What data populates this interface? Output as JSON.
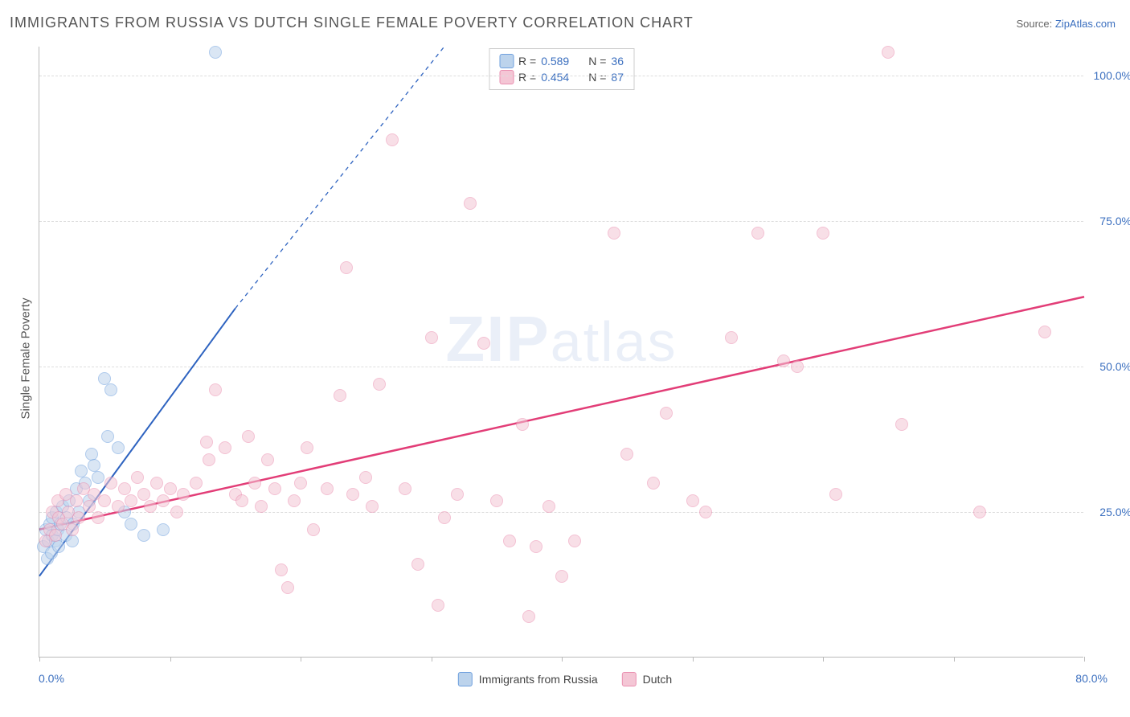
{
  "title": "IMMIGRANTS FROM RUSSIA VS DUTCH SINGLE FEMALE POVERTY CORRELATION CHART",
  "source_label": "Source: ",
  "source_name": "ZipAtlas.com",
  "ylabel": "Single Female Poverty",
  "watermark": "ZIPatlas",
  "chart": {
    "type": "scatter",
    "xlim": [
      0,
      80
    ],
    "ylim": [
      0,
      105
    ],
    "xticks": [
      0,
      10,
      20,
      30,
      40,
      50,
      60,
      70,
      80
    ],
    "xtick_labels": {
      "min": "0.0%",
      "max": "80.0%"
    },
    "yticks": [
      25,
      50,
      75,
      100
    ],
    "ytick_labels": [
      "25.0%",
      "50.0%",
      "75.0%",
      "100.0%"
    ],
    "grid_color": "#dddddd",
    "axis_color": "#bbbbbb",
    "tick_label_color": "#3b6fbf",
    "background_color": "#ffffff",
    "marker_radius": 8,
    "marker_stroke_width": 1.5,
    "series": [
      {
        "name": "Immigrants from Russia",
        "fill": "#bcd3ec",
        "stroke": "#6fa0de",
        "fill_opacity": 0.55,
        "r": 0.589,
        "n": 36,
        "trend": {
          "x1": 0,
          "y1": 14,
          "x2": 15,
          "y2": 60,
          "dash_to_x": 31,
          "dash_to_y": 105,
          "color": "#2e63c0",
          "width": 2
        },
        "points": [
          [
            0.3,
            19
          ],
          [
            0.5,
            22
          ],
          [
            0.6,
            17
          ],
          [
            0.7,
            20
          ],
          [
            0.8,
            23
          ],
          [
            0.9,
            18
          ],
          [
            1.0,
            21
          ],
          [
            1.0,
            24
          ],
          [
            1.2,
            20
          ],
          [
            1.3,
            25
          ],
          [
            1.4,
            22
          ],
          [
            1.5,
            19
          ],
          [
            1.6,
            23
          ],
          [
            1.8,
            26
          ],
          [
            2.0,
            21
          ],
          [
            2.1,
            24
          ],
          [
            2.3,
            27
          ],
          [
            2.5,
            20
          ],
          [
            2.6,
            23
          ],
          [
            2.8,
            29
          ],
          [
            3.0,
            25
          ],
          [
            3.2,
            32
          ],
          [
            3.5,
            30
          ],
          [
            3.8,
            27
          ],
          [
            4.0,
            35
          ],
          [
            4.2,
            33
          ],
          [
            4.5,
            31
          ],
          [
            5.0,
            48
          ],
          [
            5.2,
            38
          ],
          [
            5.5,
            46
          ],
          [
            6.0,
            36
          ],
          [
            6.5,
            25
          ],
          [
            7.0,
            23
          ],
          [
            8.0,
            21
          ],
          [
            9.5,
            22
          ],
          [
            13.5,
            104
          ]
        ]
      },
      {
        "name": "Dutch",
        "fill": "#f4c6d5",
        "stroke": "#ea8fb0",
        "fill_opacity": 0.55,
        "r": 0.454,
        "n": 87,
        "trend": {
          "x1": 0,
          "y1": 22,
          "x2": 80,
          "y2": 62,
          "color": "#e23d77",
          "width": 2.5
        },
        "points": [
          [
            0.5,
            20
          ],
          [
            0.8,
            22
          ],
          [
            1.0,
            25
          ],
          [
            1.2,
            21
          ],
          [
            1.4,
            27
          ],
          [
            1.5,
            24
          ],
          [
            1.8,
            23
          ],
          [
            2.0,
            28
          ],
          [
            2.2,
            25
          ],
          [
            2.5,
            22
          ],
          [
            2.8,
            27
          ],
          [
            3.0,
            24
          ],
          [
            3.4,
            29
          ],
          [
            3.8,
            26
          ],
          [
            4.2,
            28
          ],
          [
            4.5,
            24
          ],
          [
            5.0,
            27
          ],
          [
            5.5,
            30
          ],
          [
            6.0,
            26
          ],
          [
            6.5,
            29
          ],
          [
            7.0,
            27
          ],
          [
            7.5,
            31
          ],
          [
            8.0,
            28
          ],
          [
            8.5,
            26
          ],
          [
            9.0,
            30
          ],
          [
            9.5,
            27
          ],
          [
            10.0,
            29
          ],
          [
            10.5,
            25
          ],
          [
            11.0,
            28
          ],
          [
            12.0,
            30
          ],
          [
            12.8,
            37
          ],
          [
            13.0,
            34
          ],
          [
            13.5,
            46
          ],
          [
            14.2,
            36
          ],
          [
            15.0,
            28
          ],
          [
            15.5,
            27
          ],
          [
            16.0,
            38
          ],
          [
            16.5,
            30
          ],
          [
            17.0,
            26
          ],
          [
            17.5,
            34
          ],
          [
            18.0,
            29
          ],
          [
            18.5,
            15
          ],
          [
            19.0,
            12
          ],
          [
            19.5,
            27
          ],
          [
            20.0,
            30
          ],
          [
            20.5,
            36
          ],
          [
            21.0,
            22
          ],
          [
            22.0,
            29
          ],
          [
            23.0,
            45
          ],
          [
            23.5,
            67
          ],
          [
            24.0,
            28
          ],
          [
            25.0,
            31
          ],
          [
            25.5,
            26
          ],
          [
            26.0,
            47
          ],
          [
            27.0,
            89
          ],
          [
            28.0,
            29
          ],
          [
            29.0,
            16
          ],
          [
            30.0,
            55
          ],
          [
            30.5,
            9
          ],
          [
            31.0,
            24
          ],
          [
            32.0,
            28
          ],
          [
            33.0,
            78
          ],
          [
            34.0,
            54
          ],
          [
            35.0,
            27
          ],
          [
            36.0,
            20
          ],
          [
            37.0,
            40
          ],
          [
            37.5,
            7
          ],
          [
            38.0,
            19
          ],
          [
            39.0,
            26
          ],
          [
            40.0,
            14
          ],
          [
            41.0,
            20
          ],
          [
            44.0,
            73
          ],
          [
            45.0,
            35
          ],
          [
            47.0,
            30
          ],
          [
            48.0,
            42
          ],
          [
            50.0,
            27
          ],
          [
            51.0,
            25
          ],
          [
            53.0,
            55
          ],
          [
            55.0,
            73
          ],
          [
            57.0,
            51
          ],
          [
            58.0,
            50
          ],
          [
            60.0,
            73
          ],
          [
            61.0,
            28
          ],
          [
            65.0,
            104
          ],
          [
            66.0,
            40
          ],
          [
            72.0,
            25
          ],
          [
            77.0,
            56
          ]
        ]
      }
    ]
  },
  "legend": {
    "top_rows": [
      {
        "swatch_fill": "#bcd3ec",
        "swatch_stroke": "#6fa0de",
        "r": "0.589",
        "n": "36"
      },
      {
        "swatch_fill": "#f4c6d5",
        "swatch_stroke": "#ea8fb0",
        "r": "0.454",
        "n": "87"
      }
    ],
    "r_label": "R =",
    "n_label": "N =",
    "bottom": [
      {
        "swatch_fill": "#bcd3ec",
        "swatch_stroke": "#6fa0de",
        "label": "Immigrants from Russia"
      },
      {
        "swatch_fill": "#f4c6d5",
        "swatch_stroke": "#ea8fb0",
        "label": "Dutch"
      }
    ]
  }
}
